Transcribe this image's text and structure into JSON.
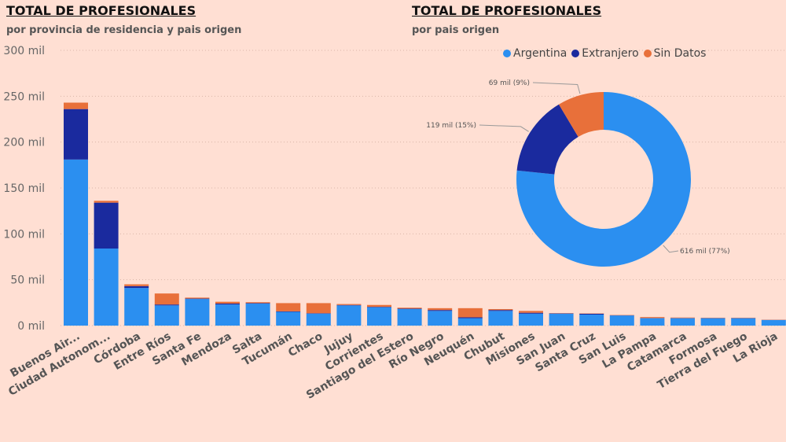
{
  "bar_panel": {
    "title": "TOTAL DE PROFESIONALES",
    "subtitle": "por provincia de residencia y pais origen"
  },
  "pie_panel": {
    "title": "TOTAL DE PROFESIONALES",
    "subtitle": "por pais origen"
  },
  "colors": {
    "Argentina": "#2B8FF0",
    "Extranjero": "#1A2A9E",
    "Sin Datos": "#E8703A"
  },
  "chart_data": [
    {
      "type": "bar",
      "stacked": true,
      "ylim": [
        0,
        300
      ],
      "yticks": [
        0,
        50,
        100,
        150,
        200,
        250,
        300
      ],
      "ytick_labels": [
        "0 mil",
        "50 mil",
        "100 mil",
        "150 mil",
        "200 mil",
        "250 mil",
        "300 mil"
      ],
      "categories": [
        "Buenos Air...",
        "Ciudad Autonom...",
        "Córdoba",
        "Entre Ríos",
        "Santa Fe",
        "Mendoza",
        "Salta",
        "Tucumán",
        "Chaco",
        "Jujuy",
        "Corrientes",
        "Santiago del Estero",
        "Río Negro",
        "Neuquén",
        "Chubut",
        "Misiones",
        "San Juan",
        "Santa Cruz",
        "San Luis",
        "La Pampa",
        "Catamarca",
        "Formosa",
        "Tierra del Fuego",
        "La Rioja"
      ],
      "series": [
        {
          "name": "Argentina",
          "values": [
            181,
            84,
            41,
            22,
            29,
            23,
            24,
            15,
            13,
            22,
            20,
            18,
            16,
            8,
            16,
            13,
            13,
            12,
            11,
            8,
            8,
            8,
            8,
            6
          ]
        },
        {
          "name": "Extranjero",
          "values": [
            55,
            50,
            2,
            1,
            0.5,
            1,
            0.5,
            0.5,
            0.5,
            0.5,
            0.5,
            0.5,
            1,
            1,
            1,
            1,
            0.3,
            1,
            0.3,
            0.3,
            0.3,
            0.3,
            0.3,
            0.2
          ]
        },
        {
          "name": "Sin Datos",
          "values": [
            7,
            2,
            2,
            12,
            1,
            2,
            1,
            9,
            11,
            1,
            2,
            1,
            2,
            10,
            1,
            2,
            0.3,
            0.3,
            0.3,
            1,
            0.5,
            0.3,
            0.3,
            0.2
          ]
        }
      ]
    },
    {
      "type": "pie",
      "donut": true,
      "legend": "top",
      "labels": [
        "Argentina",
        "Extranjero",
        "Sin Datos"
      ],
      "values": [
        616,
        119,
        69
      ],
      "data_labels": [
        "616 mil (77%)",
        "119 mil (15%)",
        "69 mil (9%)"
      ]
    }
  ]
}
